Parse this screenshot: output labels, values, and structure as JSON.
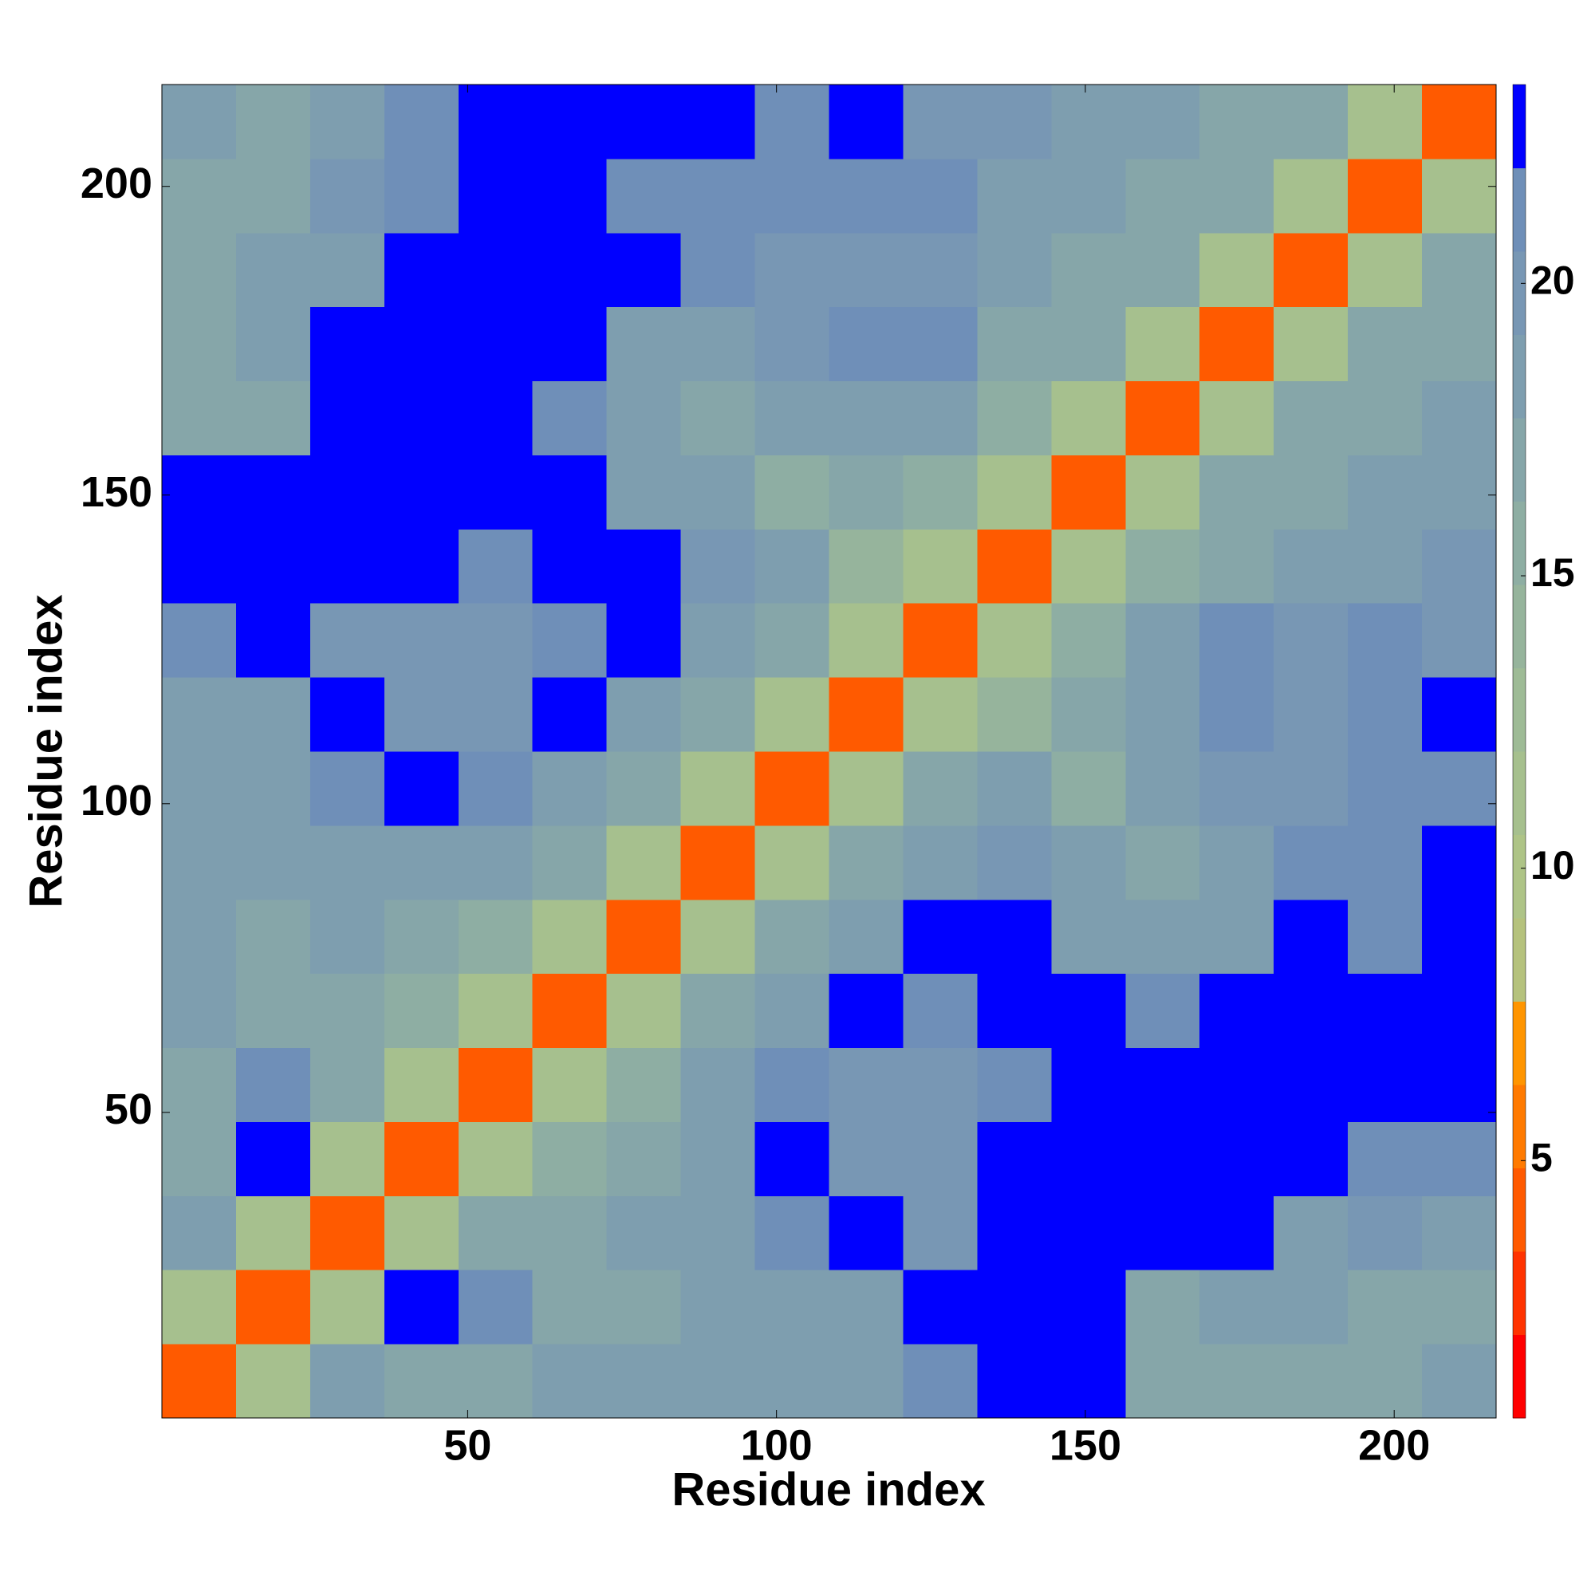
{
  "chart_data": {
    "type": "heatmap",
    "x_label": "Residue index",
    "y_label": "Residue index",
    "xlim": [
      0.5,
      216.5
    ],
    "ylim": [
      0.5,
      216.5
    ],
    "xticks": [
      50,
      100,
      150,
      200
    ],
    "yticks": [
      50,
      100,
      150,
      200
    ],
    "xbins": [
      0.5,
      12.5,
      24.5,
      36.5,
      48.5,
      60.5,
      72.5,
      84.5,
      96.5,
      108.5,
      120.5,
      132.5,
      144.5,
      156.5,
      168.5,
      180.5,
      192.5,
      204.5,
      216.5
    ],
    "ybins": [
      0.5,
      12.5,
      24.5,
      36.5,
      48.5,
      60.5,
      72.5,
      84.5,
      96.5,
      108.5,
      120.5,
      132.5,
      144.5,
      156.5,
      168.5,
      180.5,
      192.5,
      204.5,
      216.5
    ],
    "values": [
      [
        4,
        11,
        18,
        17,
        17,
        18,
        18,
        18,
        19,
        19,
        21,
        23,
        23,
        17,
        17,
        17,
        17,
        18
      ],
      [
        11,
        4,
        11,
        22,
        21,
        17,
        17,
        18,
        19,
        19,
        22,
        23,
        23,
        17,
        18,
        19,
        17,
        17
      ],
      [
        18,
        11,
        4,
        11,
        17,
        17,
        18,
        19,
        21,
        22,
        20,
        23,
        23,
        23,
        23,
        19,
        20,
        19
      ],
      [
        17,
        22,
        11,
        4,
        11,
        16,
        17,
        18,
        22,
        20,
        20,
        23,
        23,
        23,
        23,
        23,
        21,
        21
      ],
      [
        17,
        21,
        17,
        11,
        4,
        11,
        16,
        18,
        21,
        20,
        20,
        21,
        23,
        22,
        23,
        23,
        23,
        22
      ],
      [
        18,
        17,
        17,
        16,
        11,
        4,
        11,
        17,
        18,
        22,
        21,
        23,
        23,
        21,
        22,
        23,
        23,
        23
      ],
      [
        18,
        17,
        18,
        17,
        16,
        11,
        4,
        11,
        17,
        19,
        22,
        22,
        18,
        18,
        19,
        22,
        21,
        22
      ],
      [
        18,
        18,
        19,
        18,
        18,
        17,
        11,
        4,
        11,
        17,
        19,
        20,
        18,
        17,
        19,
        21,
        21,
        22
      ],
      [
        19,
        19,
        21,
        22,
        21,
        18,
        17,
        11,
        4,
        11,
        17,
        18,
        16,
        18,
        20,
        20,
        21,
        21
      ],
      [
        19,
        19,
        22,
        20,
        20,
        22,
        19,
        17,
        11,
        4,
        11,
        14,
        17,
        19,
        21,
        20,
        21,
        22
      ],
      [
        21,
        22,
        20,
        20,
        20,
        21,
        22,
        19,
        17,
        11,
        4,
        11,
        16,
        19,
        21,
        20,
        21,
        20
      ],
      [
        23,
        23,
        23,
        23,
        21,
        23,
        22,
        20,
        18,
        14,
        11,
        4,
        11,
        16,
        17,
        18,
        19,
        20
      ],
      [
        23,
        23,
        23,
        23,
        23,
        23,
        18,
        18,
        16,
        17,
        16,
        11,
        4,
        11,
        17,
        17,
        18,
        19
      ],
      [
        17,
        17,
        23,
        23,
        22,
        21,
        18,
        17,
        18,
        19,
        19,
        16,
        11,
        4,
        11,
        17,
        17,
        18
      ],
      [
        17,
        18,
        23,
        23,
        23,
        22,
        19,
        19,
        20,
        21,
        21,
        17,
        17,
        11,
        4,
        11,
        17,
        17
      ],
      [
        17,
        19,
        19,
        23,
        23,
        23,
        22,
        21,
        20,
        20,
        20,
        18,
        17,
        17,
        11,
        4,
        11,
        17
      ],
      [
        17,
        17,
        20,
        21,
        23,
        23,
        21,
        21,
        21,
        21,
        21,
        19,
        18,
        17,
        17,
        11,
        4,
        11
      ],
      [
        18,
        17,
        19,
        21,
        22,
        23,
        22,
        22,
        21,
        22,
        20,
        20,
        19,
        18,
        17,
        17,
        11,
        4
      ]
    ],
    "colorbar": {
      "zlim": [
        0.6,
        23.4
      ],
      "zticks": [
        5,
        10,
        15,
        20
      ],
      "colors": [
        "#ff0000",
        "#ff3300",
        "#ff5a00",
        "#ff7a00",
        "#ff9500",
        "#b5c27d",
        "#aec487",
        "#a6c08e",
        "#9ebb96",
        "#96b49c",
        "#8eaea3",
        "#86a6a9",
        "#7e9eaf",
        "#7897b4",
        "#6f8fb8",
        "#0000ff"
      ]
    }
  }
}
